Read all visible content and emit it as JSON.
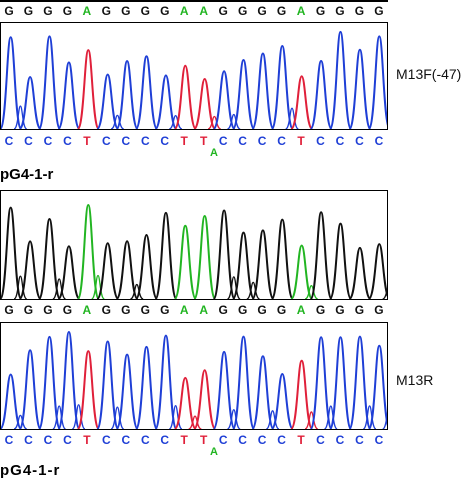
{
  "panels": [
    {
      "id": "p1",
      "label": "M13F(-47)",
      "above_seq": "GGGGAGGGGAAGGGGAGGGG",
      "below_seq": "CCCCTCCCCTTCCCCTCCCC",
      "below_sub": "A"
    },
    {
      "id": "p2",
      "label": "",
      "title": "pG4-1-r",
      "below_seq": "GGGGAGGGGAAGGGGAGGGG"
    },
    {
      "id": "p3",
      "label": "M13R",
      "below_seq": "CCCCTCCCCTTCCCCTCCCC",
      "below_sub": "A"
    }
  ],
  "bottom_title": "pG4-1-r",
  "colors": {
    "G": "#111111",
    "A": "#22b522",
    "C": "#1f3fd6",
    "T": "#e0203a"
  }
}
